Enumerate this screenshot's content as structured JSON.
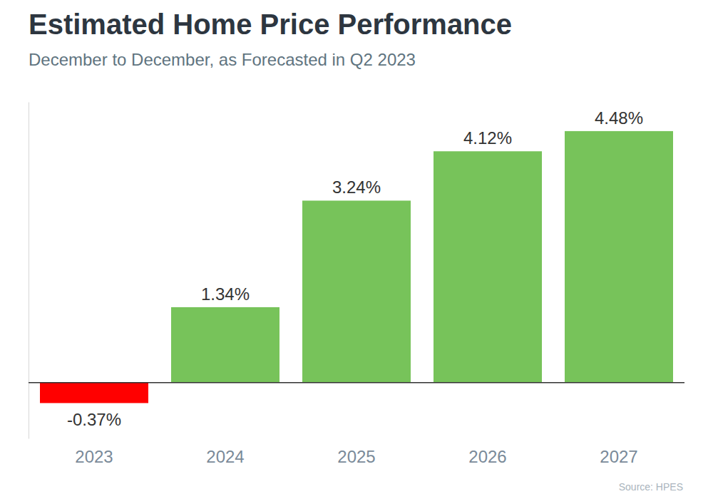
{
  "chart_data": {
    "type": "bar",
    "title": "Estimated Home Price Performance",
    "subtitle": "December to December, as Forecasted in Q2 2023",
    "source": "Source: HPES",
    "categories": [
      "2023",
      "2024",
      "2025",
      "2026",
      "2027"
    ],
    "values": [
      -0.37,
      1.34,
      3.24,
      4.12,
      4.48
    ],
    "value_labels": [
      "-0.37%",
      "1.34%",
      "3.24%",
      "4.12%",
      "4.48%"
    ],
    "colors": [
      "#ff0000",
      "#77c35a",
      "#77c35a",
      "#77c35a",
      "#77c35a"
    ],
    "ylim": [
      -1,
      5
    ],
    "yticks": [
      0
    ],
    "data_labels": true,
    "tick_labels": "x",
    "grid": false
  }
}
